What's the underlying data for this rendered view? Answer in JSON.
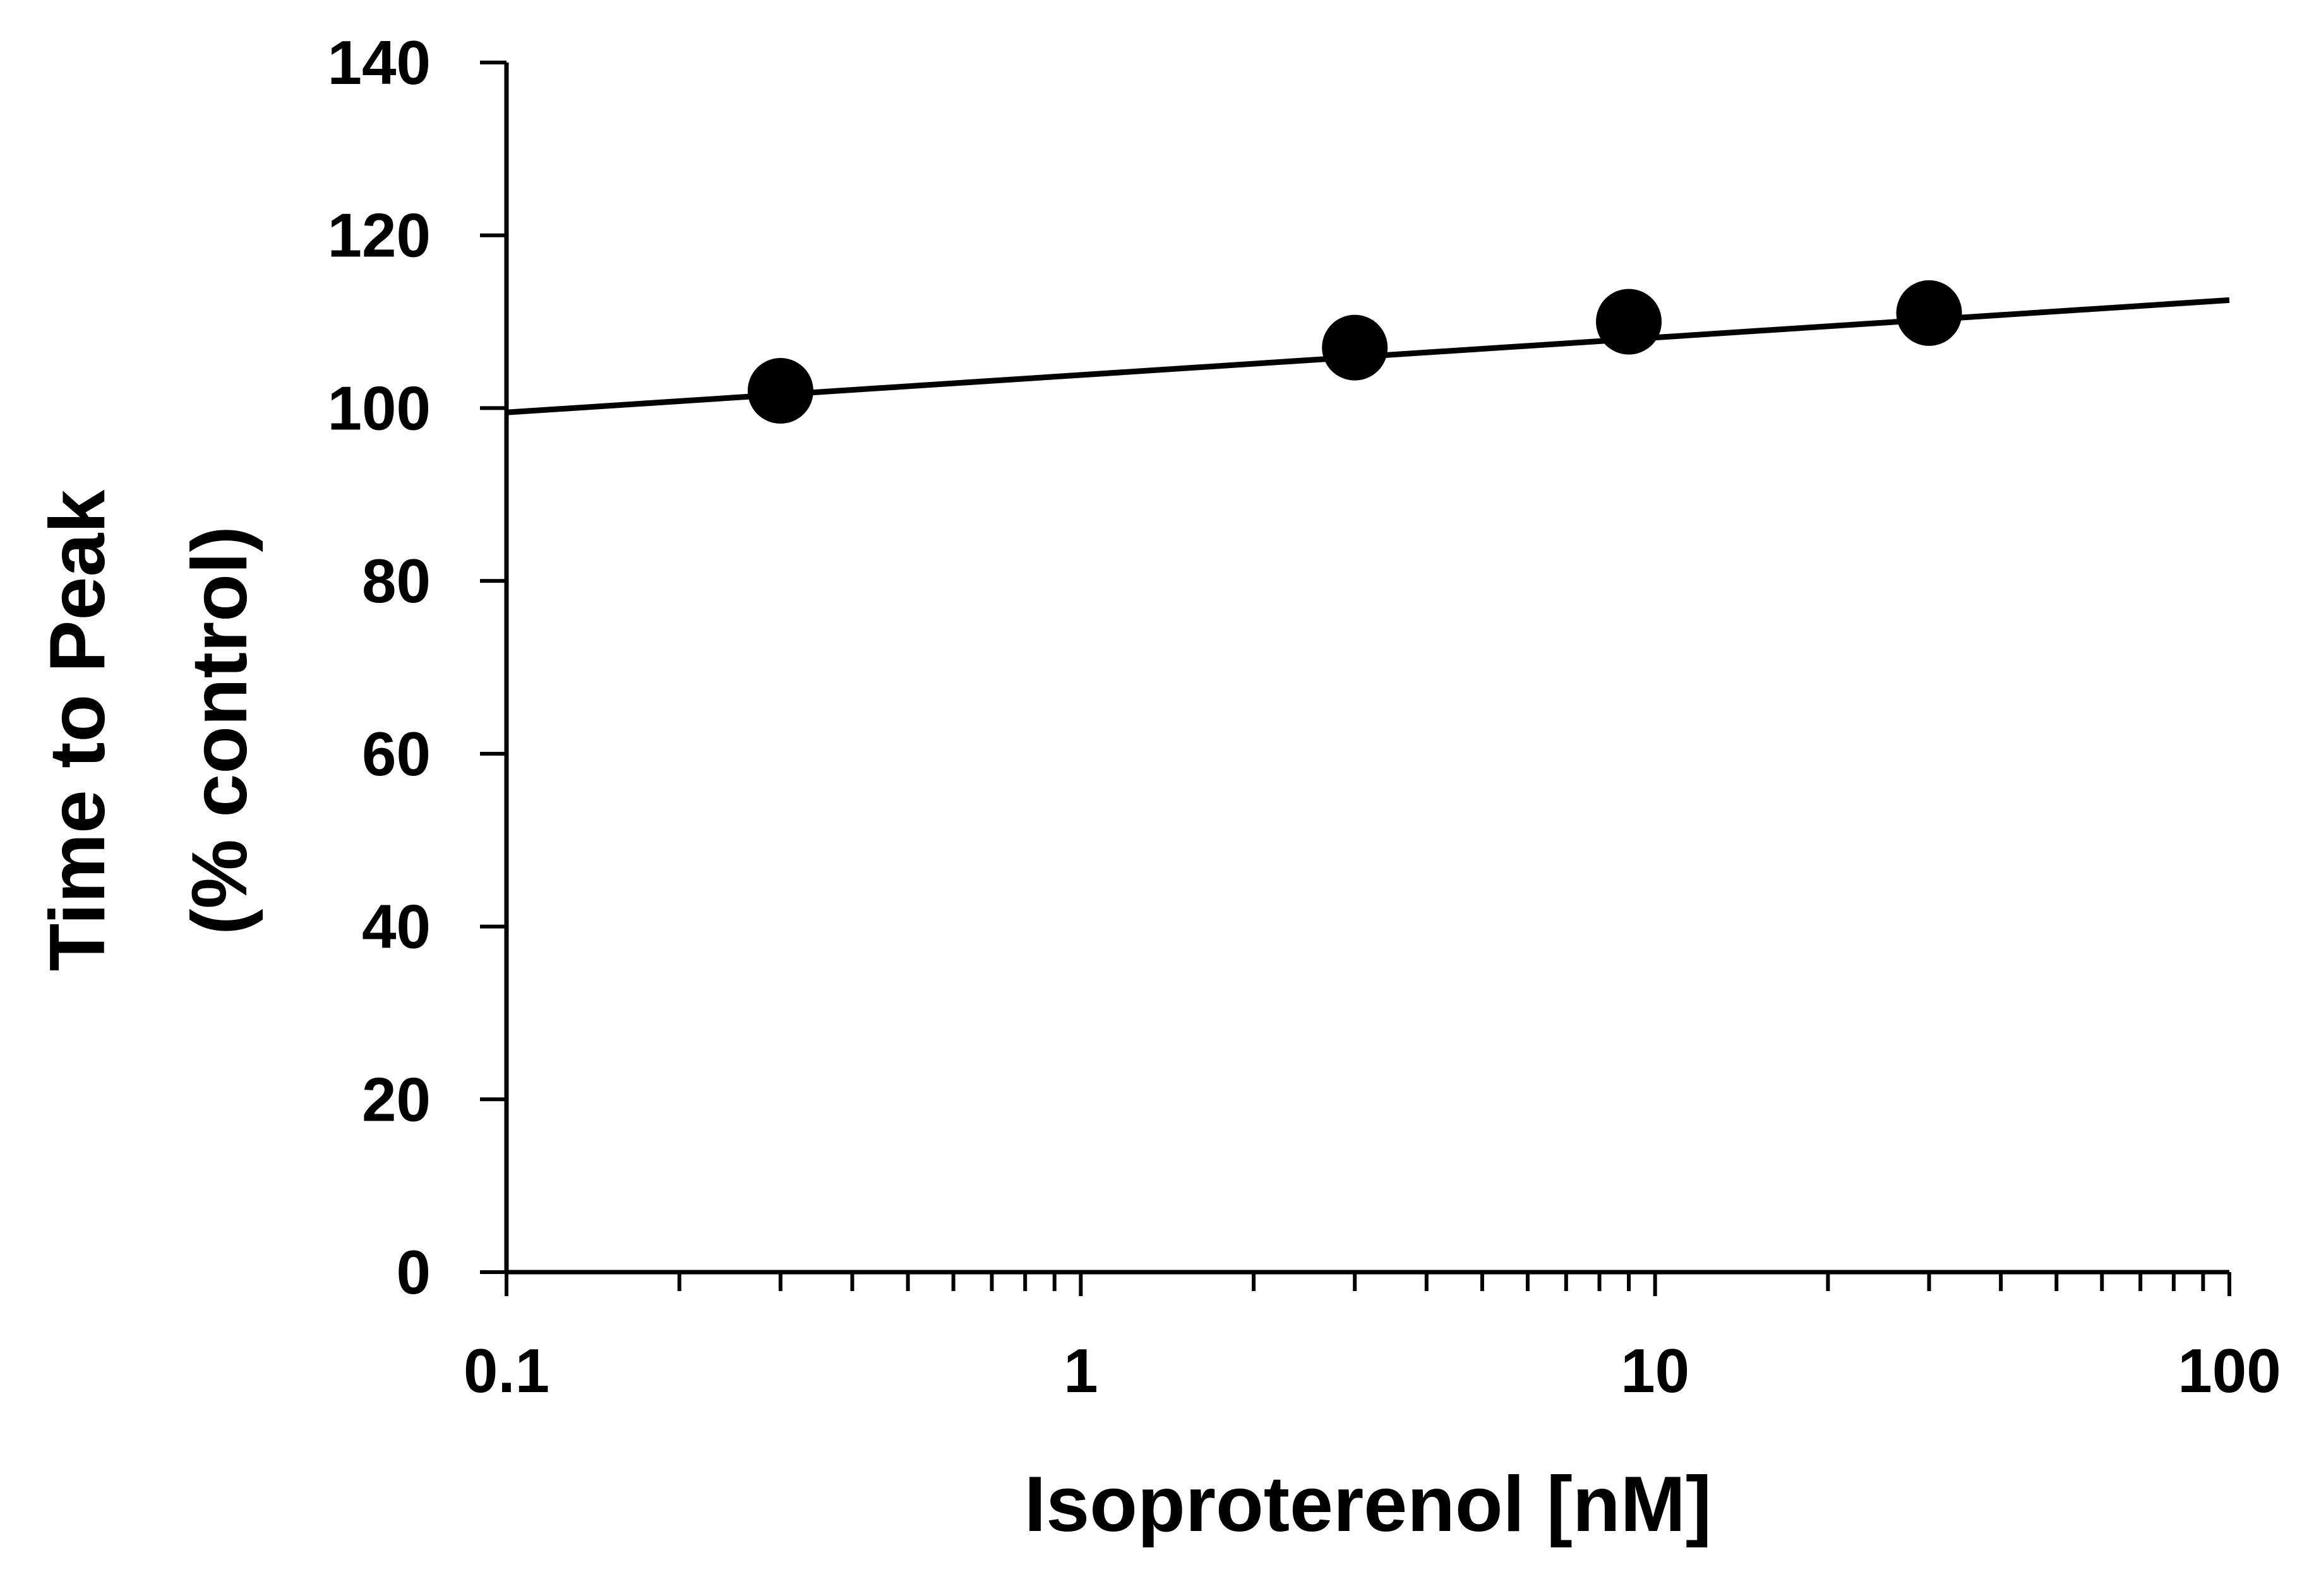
{
  "chart_data": {
    "type": "scatter",
    "title": "",
    "xlabel": "Isoproterenol [nM]",
    "ylabel_lines": [
      "Time to Peak",
      "(% control)"
    ],
    "x_scale": "log",
    "xlim": [
      0.1,
      100
    ],
    "ylim": [
      0,
      140
    ],
    "x_ticks": [
      0.1,
      1,
      10,
      100
    ],
    "x_tick_labels": [
      "0.1",
      "1",
      "10",
      "100"
    ],
    "y_ticks": [
      0,
      20,
      40,
      60,
      80,
      100,
      120,
      140
    ],
    "y_tick_labels": [
      "0",
      "20",
      "40",
      "60",
      "80",
      "100",
      "120",
      "140"
    ],
    "grid": false,
    "legend": false,
    "series": [
      {
        "x": [
          0.3,
          3,
          9,
          30
        ],
        "y": [
          102,
          107,
          110,
          111
        ],
        "marker": "filled-circle",
        "color": "#000000"
      }
    ],
    "fit_line": {
      "x": [
        0.1,
        100
      ],
      "y": [
        99.5,
        112.5
      ],
      "color": "#000000"
    }
  }
}
